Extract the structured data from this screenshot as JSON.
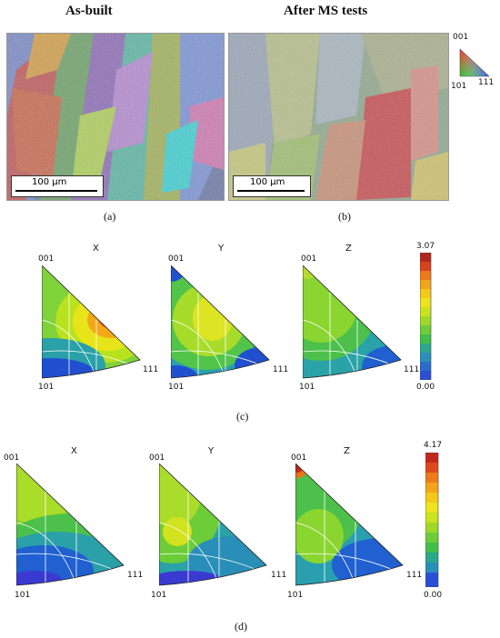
{
  "figure": {
    "ebsd": {
      "left_title": "As-built",
      "right_title": "After MS tests",
      "scale_left": "100 µm",
      "scale_right": "100 µm",
      "caption_a": "(a)",
      "caption_b": "(b)",
      "key": {
        "top": "001",
        "left": "101",
        "right": "111"
      }
    },
    "ipf_c": {
      "caption": "(c)",
      "axes": [
        "X",
        "Y",
        "Z"
      ],
      "corner_top": "001",
      "corner_left": "101",
      "corner_right": "111",
      "scale_max": "3.07",
      "scale_min": "0.00"
    },
    "ipf_d": {
      "caption": "(d)",
      "axes": [
        "X",
        "Y",
        "Z"
      ],
      "corner_top": "001",
      "corner_left": "101",
      "corner_right": "111",
      "scale_max": "4.17",
      "scale_min": "0.00"
    }
  }
}
